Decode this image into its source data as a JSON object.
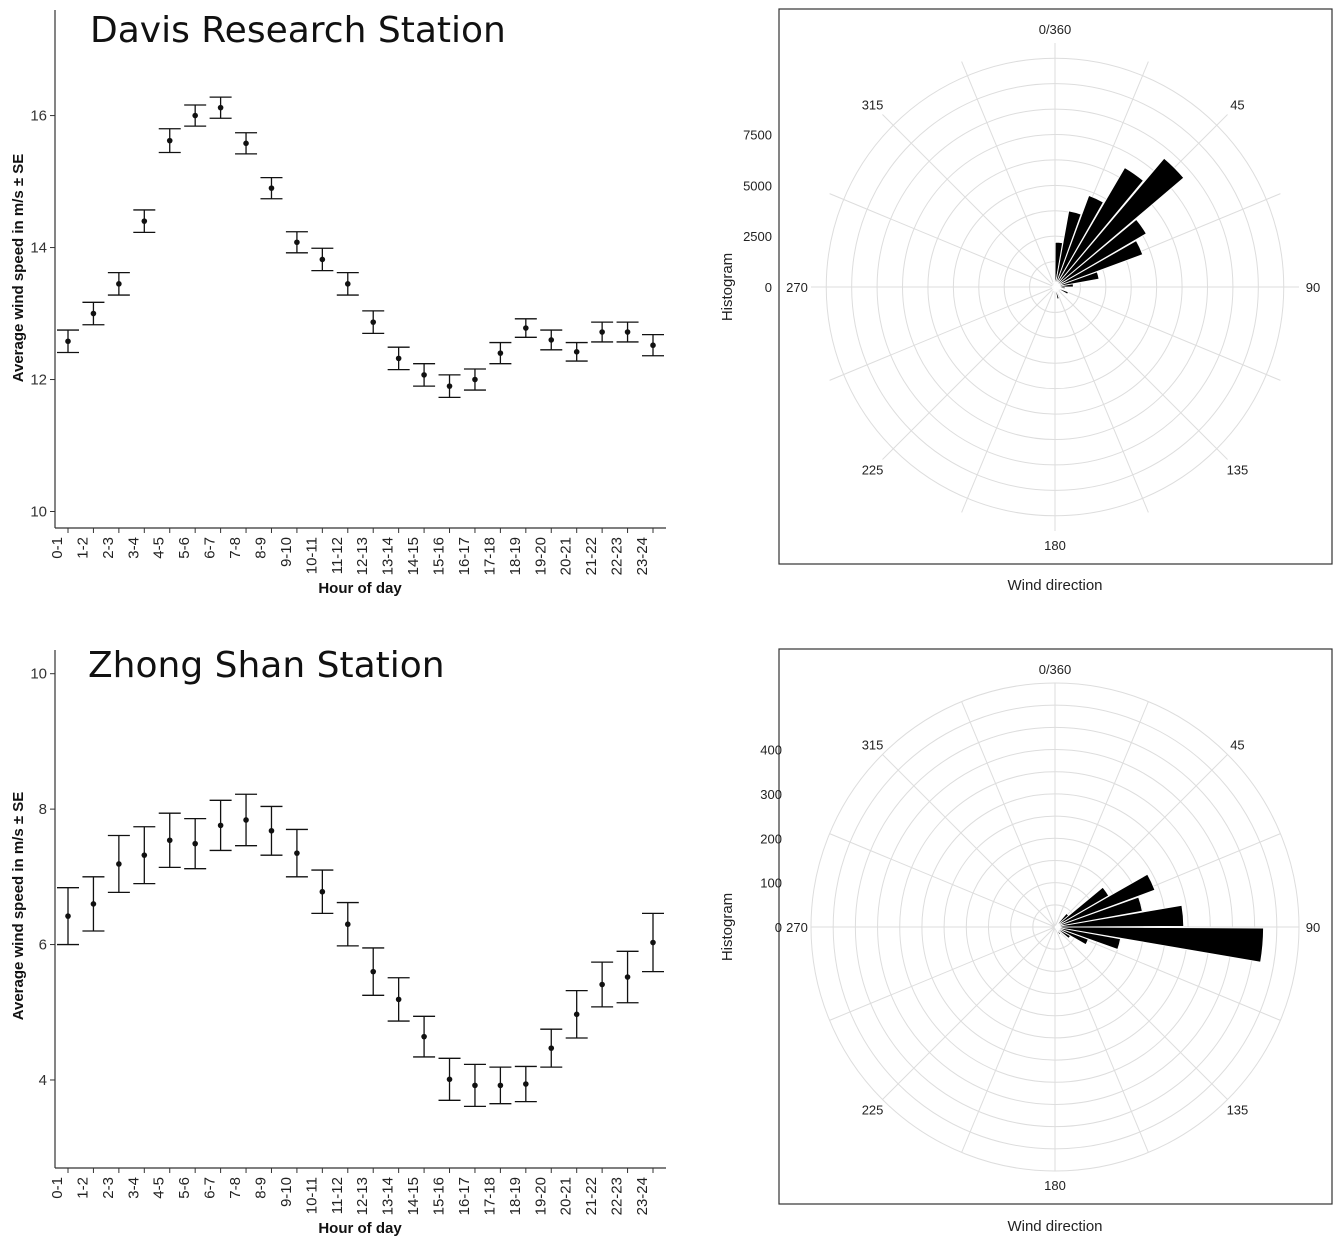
{
  "chart_data": [
    {
      "type": "scatter",
      "title": "Davis Research Station",
      "xlabel": "Hour of day",
      "ylabel": "Average wind speed in m/s ± SE",
      "categories": [
        "0-1",
        "1-2",
        "2-3",
        "3-4",
        "4-5",
        "5-6",
        "6-7",
        "7-8",
        "8-9",
        "9-10",
        "10-11",
        "11-12",
        "12-13",
        "13-14",
        "14-15",
        "15-16",
        "16-17",
        "17-18",
        "18-19",
        "19-20",
        "20-21",
        "21-22",
        "22-23",
        "23-24"
      ],
      "values": [
        12.58,
        13.0,
        13.45,
        14.4,
        15.62,
        16.0,
        16.12,
        15.58,
        14.9,
        14.08,
        13.82,
        13.45,
        12.87,
        12.32,
        12.07,
        11.9,
        12.0,
        12.4,
        12.78,
        12.6,
        12.42,
        12.72,
        12.72,
        12.52
      ],
      "se": [
        0.17,
        0.17,
        0.17,
        0.17,
        0.18,
        0.16,
        0.16,
        0.16,
        0.16,
        0.16,
        0.17,
        0.17,
        0.17,
        0.17,
        0.17,
        0.17,
        0.16,
        0.16,
        0.14,
        0.15,
        0.14,
        0.15,
        0.15,
        0.16
      ],
      "yticks": [
        10,
        12,
        14,
        16
      ],
      "ylim": [
        9.75,
        17.6
      ]
    },
    {
      "type": "bar",
      "subtype": "polar-histogram",
      "xlabel": "Wind direction",
      "ylabel": "Histogram",
      "direction_labels": [
        "0/360",
        "45",
        "90",
        "135",
        "180",
        "225",
        "270",
        "315"
      ],
      "rticks": [
        0,
        2500,
        5000,
        7500
      ],
      "rmax": 12000,
      "bin_width_deg": 10,
      "bins": [
        {
          "direction": 5,
          "count": 2200
        },
        {
          "direction": 15,
          "count": 3800
        },
        {
          "direction": 25,
          "count": 4800
        },
        {
          "direction": 35,
          "count": 6800
        },
        {
          "direction": 45,
          "count": 8300
        },
        {
          "direction": 55,
          "count": 5200
        },
        {
          "direction": 65,
          "count": 4600
        },
        {
          "direction": 75,
          "count": 2200
        },
        {
          "direction": 85,
          "count": 900
        },
        {
          "direction": 95,
          "count": 500
        },
        {
          "direction": 105,
          "count": 300
        },
        {
          "direction": 115,
          "count": 700
        },
        {
          "direction": 125,
          "count": 300
        },
        {
          "direction": 145,
          "count": 300
        },
        {
          "direction": 165,
          "count": 600
        },
        {
          "direction": 180,
          "count": 200
        },
        {
          "direction": 200,
          "count": 200
        },
        {
          "direction": 225,
          "count": 150
        },
        {
          "direction": 250,
          "count": 150
        },
        {
          "direction": 280,
          "count": 150
        },
        {
          "direction": 315,
          "count": 150
        },
        {
          "direction": 345,
          "count": 250
        }
      ]
    },
    {
      "type": "scatter",
      "title": "Zhong Shan Station",
      "xlabel": "Hour of day",
      "ylabel": "Average wind speed in m/s ± SE",
      "categories": [
        "0-1",
        "1-2",
        "2-3",
        "3-4",
        "4-5",
        "5-6",
        "6-7",
        "7-8",
        "8-9",
        "9-10",
        "10-11",
        "11-12",
        "12-13",
        "13-14",
        "14-15",
        "15-16",
        "16-17",
        "17-18",
        "18-19",
        "19-20",
        "20-21",
        "21-22",
        "22-23",
        "23-24"
      ],
      "values": [
        6.42,
        6.6,
        7.19,
        7.32,
        7.54,
        7.49,
        7.76,
        7.84,
        7.68,
        7.35,
        6.78,
        6.3,
        5.6,
        5.19,
        4.64,
        4.01,
        3.92,
        3.92,
        3.94,
        4.47,
        4.97,
        5.41,
        5.52,
        6.03
      ],
      "se": [
        0.42,
        0.4,
        0.42,
        0.42,
        0.4,
        0.37,
        0.37,
        0.38,
        0.36,
        0.35,
        0.32,
        0.32,
        0.35,
        0.32,
        0.3,
        0.31,
        0.31,
        0.27,
        0.26,
        0.28,
        0.35,
        0.33,
        0.38,
        0.43
      ],
      "yticks": [
        4,
        6,
        8,
        10
      ],
      "ylim": [
        2.7,
        10.35
      ]
    },
    {
      "type": "bar",
      "subtype": "polar-histogram",
      "xlabel": "Wind direction",
      "ylabel": "Histogram",
      "direction_labels": [
        "0/360",
        "45",
        "90",
        "135",
        "180",
        "225",
        "270",
        "315"
      ],
      "rticks": [
        0,
        100,
        200,
        300,
        400
      ],
      "rmax": 550,
      "bin_width_deg": 10,
      "bins": [
        {
          "direction": 45,
          "count": 40
        },
        {
          "direction": 55,
          "count": 140
        },
        {
          "direction": 65,
          "count": 240
        },
        {
          "direction": 75,
          "count": 200
        },
        {
          "direction": 85,
          "count": 290
        },
        {
          "direction": 95,
          "count": 470
        },
        {
          "direction": 105,
          "count": 150
        },
        {
          "direction": 115,
          "count": 80
        },
        {
          "direction": 125,
          "count": 40
        },
        {
          "direction": 145,
          "count": 20
        }
      ]
    }
  ]
}
